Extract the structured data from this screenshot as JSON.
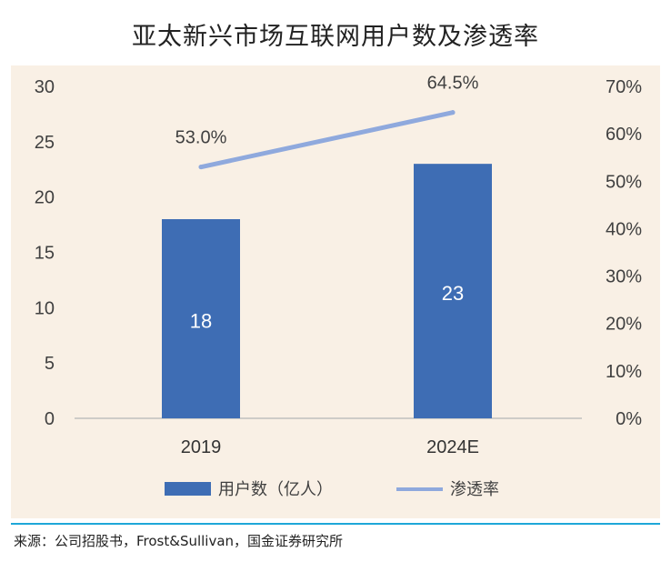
{
  "title": "亚太新兴市场互联网用户数及渗透率",
  "source": "来源：公司招股书，Frost&Sullivan，国金证券研究所",
  "colors": {
    "plot_background": "#f9f0e5",
    "bar": "#3e6db4",
    "line": "#8fa9dd",
    "axis": "#bfbfbf",
    "footer_line": "#1ea7d8"
  },
  "chart_data": {
    "type": "bar+line",
    "categories": [
      "2019",
      "2024E"
    ],
    "series": [
      {
        "name": "用户数（亿人）",
        "type": "bar",
        "axis": "left",
        "values": [
          18,
          23
        ],
        "labels": [
          "18",
          "23"
        ]
      },
      {
        "name": "渗透率",
        "type": "line",
        "axis": "right",
        "values": [
          53.0,
          64.5
        ],
        "labels": [
          "53.0%",
          "64.5%"
        ]
      }
    ],
    "y_left": {
      "min": 0,
      "max": 30,
      "ticks": [
        "0",
        "5",
        "10",
        "15",
        "20",
        "25",
        "30"
      ],
      "tick_values": [
        0,
        5,
        10,
        15,
        20,
        25,
        30
      ]
    },
    "y_right": {
      "min": 0,
      "max": 70,
      "ticks": [
        "0%",
        "10%",
        "20%",
        "30%",
        "40%",
        "50%",
        "60%",
        "70%"
      ],
      "tick_values": [
        0,
        10,
        20,
        30,
        40,
        50,
        60,
        70
      ]
    },
    "grid": false,
    "legend_position": "bottom"
  }
}
